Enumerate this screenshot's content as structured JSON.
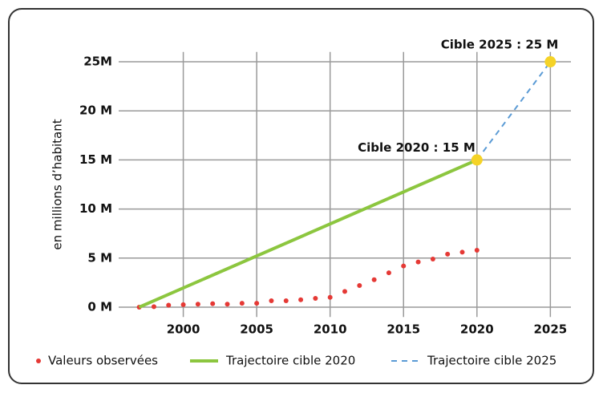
{
  "chart_data": {
    "type": "line",
    "y_label": "en millions d’habitant",
    "xlim": [
      1995.6,
      2026.4
    ],
    "ylim": [
      -1,
      26
    ],
    "xticks": [
      2000,
      2005,
      2010,
      2015,
      2020,
      2025
    ],
    "yticks": [
      {
        "value": 0,
        "label": "0 M"
      },
      {
        "value": 5,
        "label": "5 M"
      },
      {
        "value": 10,
        "label": "10 M"
      },
      {
        "value": 15,
        "label": "15 M"
      },
      {
        "value": 20,
        "label": "20 M"
      },
      {
        "value": 25,
        "label": "25M"
      }
    ],
    "grid": true,
    "legend": "bottom",
    "series": [
      {
        "name": "Valeurs observées",
        "color": "#e53935",
        "style": "dots",
        "x": [
          1997,
          1998,
          1999,
          2000,
          2001,
          2002,
          2003,
          2004,
          2005,
          2006,
          2007,
          2008,
          2009,
          2010,
          2011,
          2012,
          2013,
          2014,
          2015,
          2016,
          2017,
          2018,
          2019,
          2020
        ],
        "values": [
          0,
          0.05,
          0.2,
          0.25,
          0.3,
          0.35,
          0.3,
          0.4,
          0.4,
          0.65,
          0.65,
          0.75,
          0.9,
          1.0,
          1.6,
          2.2,
          2.8,
          3.5,
          4.2,
          4.6,
          4.9,
          5.4,
          5.6,
          5.8
        ]
      },
      {
        "name": "Trajectoire cible 2020",
        "color": "#8cc63f",
        "style": "solid",
        "x": [
          1997,
          2020
        ],
        "values": [
          0,
          15
        ]
      },
      {
        "name": "Trajectoire cible 2025",
        "color": "#5b9bd5",
        "style": "dashed",
        "x": [
          2020,
          2025
        ],
        "values": [
          15,
          25
        ]
      }
    ],
    "annotations": [
      {
        "x": 2020,
        "y": 15,
        "label": "Cible 2020 : 15 M",
        "color": "#f5d327"
      },
      {
        "x": 2025,
        "y": 25,
        "label": "Cible 2025 : 25 M",
        "color": "#f5d327"
      }
    ]
  }
}
